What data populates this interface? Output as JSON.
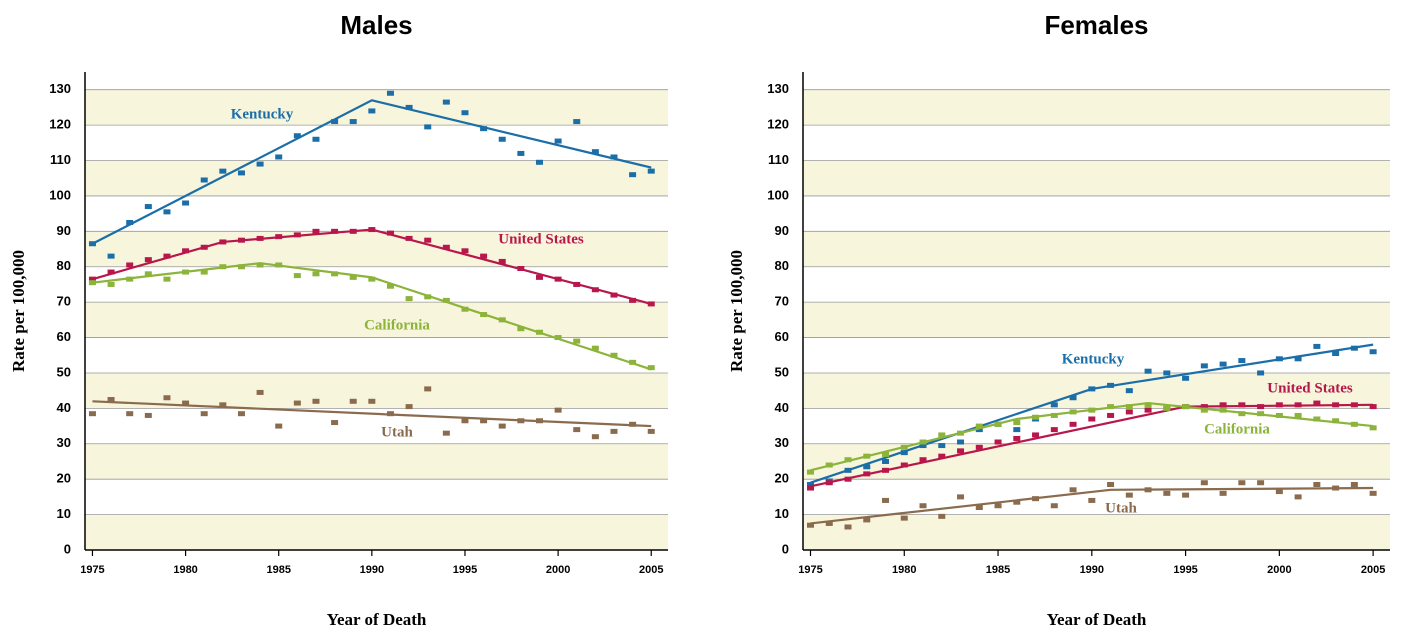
{
  "chart_data": [
    {
      "type": "line",
      "title": "Males",
      "ylabel": "Rate per 100,000",
      "xlabel": "Year of Death",
      "x": [
        1975,
        1976,
        1977,
        1978,
        1979,
        1980,
        1981,
        1982,
        1983,
        1984,
        1985,
        1986,
        1987,
        1988,
        1989,
        1990,
        1991,
        1992,
        1993,
        1994,
        1995,
        1996,
        1997,
        1998,
        1999,
        2000,
        2001,
        2002,
        2003,
        2004,
        2005
      ],
      "xlim": [
        1974.6,
        2005.9
      ],
      "ylim": [
        0,
        135
      ],
      "xticks": [
        1975,
        1980,
        1985,
        1990,
        1995,
        2000,
        2005
      ],
      "yticks": [
        0,
        10,
        20,
        30,
        40,
        50,
        60,
        70,
        80,
        90,
        100,
        110,
        120,
        130
      ],
      "series": [
        {
          "name": "Kentucky",
          "color": "#1b6ea8",
          "values": [
            86.5,
            83,
            92.5,
            97,
            95.5,
            98,
            104.5,
            107,
            106.5,
            109,
            111,
            117,
            116,
            121,
            121,
            124,
            129,
            125,
            119.5,
            126.5,
            123.5,
            119,
            116,
            112,
            109.5,
            115.5,
            121,
            112.5,
            111,
            106,
            107
          ],
          "trend": {
            "x": [
              1975,
              1990,
              2005
            ],
            "values": [
              86.5,
              127,
              108
            ]
          }
        },
        {
          "name": "United States",
          "color": "#b8174b",
          "values": [
            76.5,
            78.5,
            80.5,
            82,
            83,
            84.5,
            85.5,
            87,
            87.5,
            88,
            88.5,
            89,
            90,
            90,
            90,
            90.5,
            89.5,
            88,
            87.5,
            85.5,
            84.5,
            83,
            81.5,
            79.5,
            77,
            76.5,
            75,
            73.5,
            72,
            70.5,
            69.5
          ],
          "trend": {
            "x": [
              1975,
              1982,
              1990,
              2005
            ],
            "values": [
              76.5,
              87,
              90.5,
              69.5
            ]
          }
        },
        {
          "name": "California",
          "color": "#8cb33a",
          "values": [
            75.5,
            75,
            76.5,
            78,
            76.5,
            78.5,
            78.5,
            80,
            80,
            80.5,
            80.5,
            77.5,
            78,
            78,
            77,
            76.5,
            74.5,
            71,
            71.5,
            70.5,
            68,
            66.5,
            65,
            62.5,
            61.5,
            60,
            59,
            57,
            55,
            53,
            51.5
          ],
          "trend": {
            "x": [
              1975,
              1984,
              1990,
              2005
            ],
            "values": [
              75.5,
              81,
              77,
              51
            ]
          }
        },
        {
          "name": "Utah",
          "color": "#8b6b4e",
          "values": [
            38.5,
            42.5,
            38.5,
            38,
            43,
            41.5,
            38.5,
            41,
            38.5,
            44.5,
            35,
            41.5,
            42,
            36,
            42,
            42,
            38.5,
            40.5,
            45.5,
            33,
            36.5,
            36.5,
            35,
            36.5,
            36.5,
            39.5,
            34,
            32,
            33.5,
            35.5,
            33.5
          ],
          "trend": {
            "x": [
              1975,
              2005
            ],
            "values": [
              42,
              35
            ]
          }
        }
      ]
    },
    {
      "type": "line",
      "title": "Females",
      "ylabel": "Rate per 100,000",
      "xlabel": "Year of Death",
      "x": [
        1975,
        1976,
        1977,
        1978,
        1979,
        1980,
        1981,
        1982,
        1983,
        1984,
        1985,
        1986,
        1987,
        1988,
        1989,
        1990,
        1991,
        1992,
        1993,
        1994,
        1995,
        1996,
        1997,
        1998,
        1999,
        2000,
        2001,
        2002,
        2003,
        2004,
        2005
      ],
      "xlim": [
        1974.6,
        2005.9
      ],
      "ylim": [
        0,
        135
      ],
      "xticks": [
        1975,
        1980,
        1985,
        1990,
        1995,
        2000,
        2005
      ],
      "yticks": [
        0,
        10,
        20,
        30,
        40,
        50,
        60,
        70,
        80,
        90,
        100,
        110,
        120,
        130
      ],
      "series": [
        {
          "name": "Kentucky",
          "color": "#1b6ea8",
          "values": [
            18.5,
            19.5,
            22.5,
            23.5,
            25,
            27.5,
            29.5,
            29.5,
            30.5,
            34,
            35.5,
            34,
            37,
            41,
            43,
            45.5,
            46.5,
            45,
            50.5,
            50,
            48.5,
            52,
            52.5,
            53.5,
            50,
            54,
            54,
            57.5,
            55.5,
            57,
            56
          ],
          "trend": {
            "x": [
              1975,
              1990,
              2005
            ],
            "values": [
              19,
              45.5,
              58
            ]
          }
        },
        {
          "name": "United States",
          "color": "#b8174b",
          "values": [
            17.5,
            19,
            20,
            21.5,
            22.5,
            24,
            25.5,
            26.5,
            28,
            29,
            30.5,
            31.5,
            32.5,
            34,
            35.5,
            37,
            38,
            39,
            39.5,
            40,
            40.5,
            40.5,
            41,
            41,
            40.5,
            41,
            41,
            41.5,
            41,
            41,
            40.5
          ],
          "trend": {
            "x": [
              1975,
              1995,
              2005
            ],
            "values": [
              18,
              40.5,
              41
            ]
          }
        },
        {
          "name": "California",
          "color": "#8cb33a",
          "values": [
            22,
            24,
            25.5,
            26.5,
            27,
            29,
            30.5,
            32.5,
            33,
            35,
            35.5,
            36,
            37.5,
            38,
            39,
            39.5,
            40.5,
            40.5,
            41,
            40,
            40.5,
            39.5,
            39.5,
            38.5,
            38.5,
            38,
            38,
            37,
            36.5,
            35.5,
            34.5
          ],
          "trend": {
            "x": [
              1975,
              1986,
              1993,
              2005
            ],
            "values": [
              22.5,
              37,
              41.5,
              35
            ]
          }
        },
        {
          "name": "Utah",
          "color": "#8b6b4e",
          "values": [
            7,
            7.5,
            6.5,
            8.5,
            14,
            9,
            12.5,
            9.5,
            15,
            12,
            12.5,
            13.5,
            14.5,
            12.5,
            17,
            14,
            18.5,
            15.5,
            17,
            16,
            15.5,
            19,
            16,
            19,
            19,
            16.5,
            15,
            18.5,
            17.5,
            18.5,
            16
          ],
          "trend": {
            "x": [
              1975,
              1991,
              2005
            ],
            "values": [
              7.5,
              17,
              17.5
            ]
          }
        }
      ]
    }
  ]
}
